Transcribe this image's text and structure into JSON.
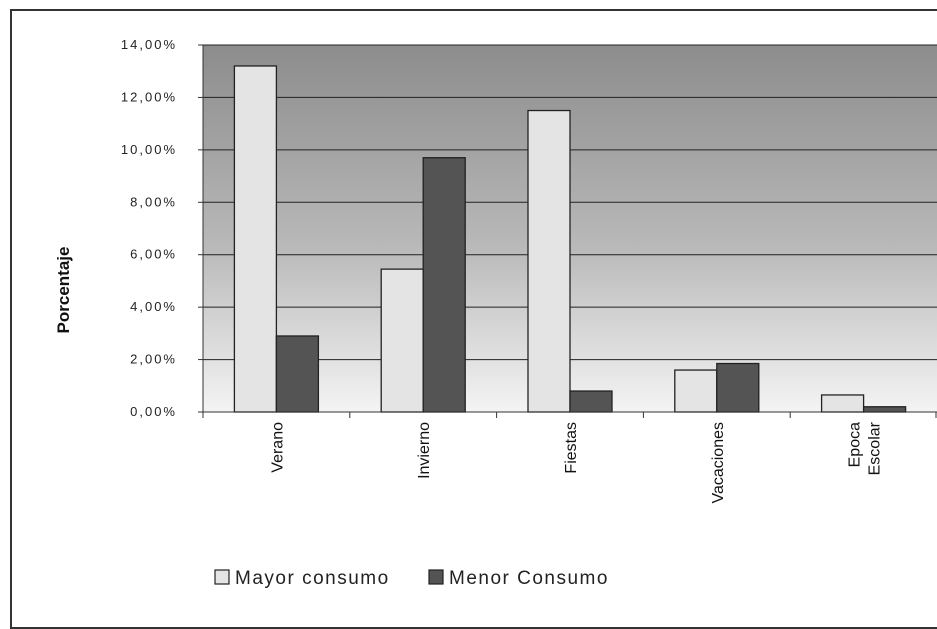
{
  "chart_data": {
    "type": "bar",
    "title": "",
    "xlabel": "",
    "ylabel": "Porcentaje",
    "categories": [
      [
        "Verano"
      ],
      [
        "Invierno"
      ],
      [
        "Fiestas"
      ],
      [
        "Vacaciones"
      ],
      [
        "Epoca",
        "Escolar"
      ]
    ],
    "series": [
      {
        "name": "Mayor consumo",
        "values": [
          13.2,
          5.45,
          11.5,
          1.6,
          0.65
        ],
        "color": "#e4e4e4"
      },
      {
        "name": "Menor Consumo",
        "values": [
          2.9,
          9.7,
          0.8,
          1.85,
          0.2
        ],
        "color": "#545454"
      }
    ],
    "ylim": [
      0,
      14
    ],
    "yticks": [
      0,
      2,
      4,
      6,
      8,
      10,
      12,
      14
    ],
    "ytick_labels": [
      "0,00%",
      "2,00%",
      "4,00%",
      "6,00%",
      "8,00%",
      "10,00%",
      "12,00%",
      "14,00%"
    ],
    "grid": true,
    "legend": "bottom",
    "plot_background": "gray-gradient"
  }
}
